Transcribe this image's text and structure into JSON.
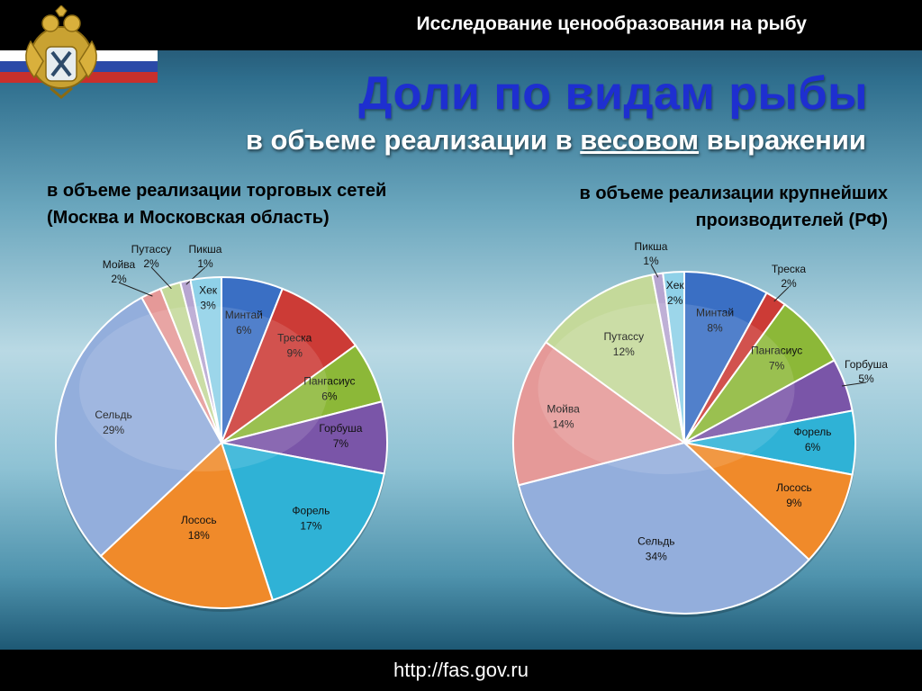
{
  "header": {
    "title": "Исследование ценообразования на рыбу"
  },
  "slide": {
    "title": "Доли по видам рыбы",
    "subtitle_pre": "в объеме реализации в ",
    "subtitle_underlined": "весовом",
    "subtitle_post": " выражении"
  },
  "footer": {
    "url": "http://fas.gov.ru"
  },
  "chart_data": [
    {
      "type": "pie",
      "title_line1": "в объеме реализации торговых сетей",
      "title_line2": "(Москва и Московская область)",
      "slices": [
        {
          "name": "Минтай",
          "label": "6%",
          "value": 6,
          "color": "#3a6fc4"
        },
        {
          "name": "Треска",
          "label": "9%",
          "value": 9,
          "color": "#cc3b36"
        },
        {
          "name": "Пангасиус",
          "label": "6%",
          "value": 6,
          "color": "#8cb838"
        },
        {
          "name": "Горбуша",
          "label": "7%",
          "value": 7,
          "color": "#7a55a8"
        },
        {
          "name": "Форель",
          "label": "17%",
          "value": 17,
          "color": "#2fb2d6"
        },
        {
          "name": "Лосось",
          "label": "18%",
          "value": 18,
          "color": "#f08a2a"
        },
        {
          "name": "Сельдь",
          "label": "29%",
          "value": 29,
          "color": "#93aedc"
        },
        {
          "name": "Мойва",
          "label": "2%",
          "value": 2,
          "color": "#e59998"
        },
        {
          "name": "Путассу",
          "label": "2%",
          "value": 2,
          "color": "#c4d99a"
        },
        {
          "name": "Пикша",
          "label": "1%",
          "value": 1,
          "color": "#b7a6d1"
        },
        {
          "name": "Хек",
          "label": "3%",
          "value": 3,
          "color": "#8fd1e8"
        }
      ]
    },
    {
      "type": "pie",
      "title_line1": "в объеме реализации крупнейших",
      "title_line2": "производителей (РФ)",
      "slices": [
        {
          "name": "Минтай",
          "label": "8%",
          "value": 8,
          "color": "#3a6fc4"
        },
        {
          "name": "Треска",
          "label": "2%",
          "value": 2,
          "color": "#cc3b36"
        },
        {
          "name": "Пангасиус",
          "label": "7%",
          "value": 7,
          "color": "#8cb838"
        },
        {
          "name": "Горбуша",
          "label": "5%",
          "value": 5,
          "color": "#7a55a8"
        },
        {
          "name": "Форель",
          "label": "6%",
          "value": 6,
          "color": "#2fb2d6"
        },
        {
          "name": "Лосось",
          "label": "9%",
          "value": 9,
          "color": "#f08a2a"
        },
        {
          "name": "Сельдь",
          "label": "34%",
          "value": 34,
          "color": "#93aedc"
        },
        {
          "name": "Мойва",
          "label": "14%",
          "value": 14,
          "color": "#e59998"
        },
        {
          "name": "Путассу",
          "label": "12%",
          "value": 12,
          "color": "#c4d99a"
        },
        {
          "name": "Пикша",
          "label": "1%",
          "value": 1,
          "color": "#b7a6d1"
        },
        {
          "name": "Хек",
          "label": "2%",
          "value": 2,
          "color": "#8fd1e8"
        }
      ]
    }
  ]
}
